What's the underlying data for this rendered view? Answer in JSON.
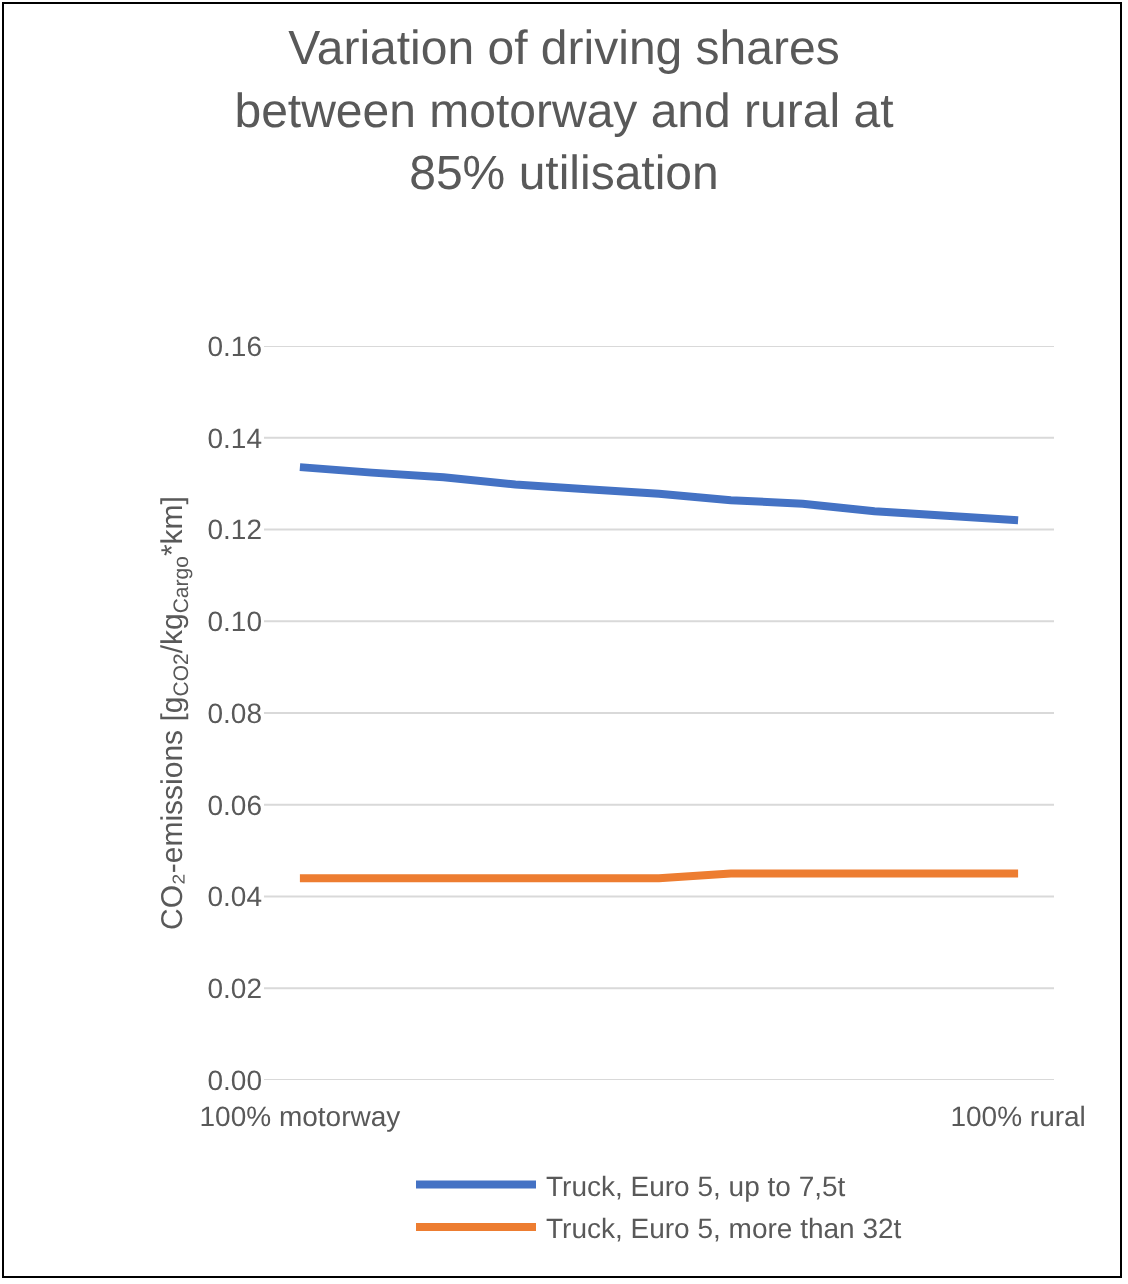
{
  "chart_data": {
    "type": "line",
    "title": "Variation of driving shares between motorway and rural at 85% utilisation",
    "ylabel": "CO₂-emissions [g$_{CO2}$/kg$_{Cargo}$*km]",
    "categories": [
      "100% motorway",
      null,
      null,
      null,
      null,
      null,
      null,
      null,
      null,
      null,
      "100% rural"
    ],
    "series": [
      {
        "name": "Truck, Euro 5, up to 7,5t",
        "color": "#4472c4",
        "values": [
          0.1336,
          0.1324,
          0.1314,
          0.1298,
          0.1288,
          0.1278,
          0.1264,
          0.1256,
          0.124,
          0.123,
          0.122
        ]
      },
      {
        "name": "Truck, Euro 5, more than 32t",
        "color": "#ed7d31",
        "values": [
          0.044,
          0.044,
          0.044,
          0.044,
          0.044,
          0.044,
          0.045,
          0.045,
          0.045,
          0.045,
          0.045
        ]
      }
    ],
    "ylim": [
      0,
      0.16
    ],
    "yticks": [
      {
        "value": 0,
        "label": "0.00"
      },
      0.02,
      0.04,
      0.06,
      0.08,
      {
        "value": 0.1,
        "label": "0.10"
      },
      0.12,
      0.14,
      0.16
    ],
    "grid": "y",
    "legend": "bottom",
    "marker": "none",
    "line_style": "solid"
  }
}
